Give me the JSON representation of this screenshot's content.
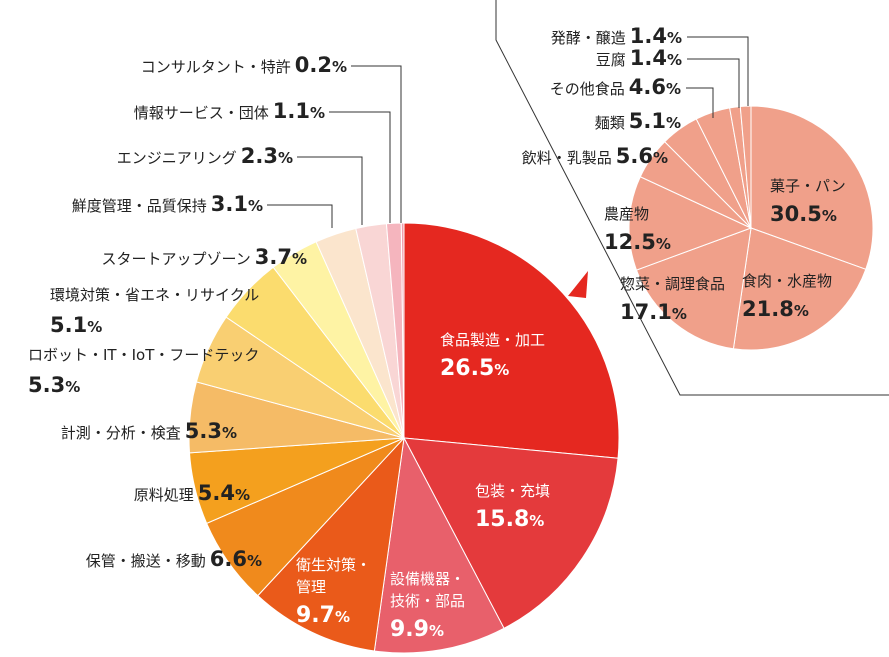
{
  "chart_data": [
    {
      "type": "pie",
      "unit": "%",
      "slices": [
        {
          "label": "食品製造・加工",
          "value": 26.5,
          "color": "#e52820"
        },
        {
          "label": "包装・充填",
          "value": 15.8,
          "color": "#e43a3c"
        },
        {
          "label": "設備機器・技術・部品",
          "value": 9.9,
          "color": "#e8606b"
        },
        {
          "label": "衛生対策・管理",
          "value": 9.7,
          "color": "#ea5a1a"
        },
        {
          "label": "保管・搬送・移動",
          "value": 6.6,
          "color": "#f08a1c"
        },
        {
          "label": "原料処理",
          "value": 5.4,
          "color": "#f4a01e"
        },
        {
          "label": "計測・分析・検査",
          "value": 5.3,
          "color": "#f5bb66"
        },
        {
          "label": "ロボット・IT・IoT・フードテック",
          "value": 5.3,
          "color": "#f9cf72"
        },
        {
          "label": "環境対策・省エネ・リサイクル",
          "value": 5.1,
          "color": "#fbdc6e"
        },
        {
          "label": "スタートアップゾーン",
          "value": 3.7,
          "color": "#fef3a4"
        },
        {
          "label": "鮮度管理・品質保持",
          "value": 3.1,
          "color": "#fbe5cd"
        },
        {
          "label": "エンジニアリング",
          "value": 2.3,
          "color": "#f9d6d5"
        },
        {
          "label": "情報サービス・団体",
          "value": 1.1,
          "color": "#f5b5be"
        },
        {
          "label": "コンサルタント・特許",
          "value": 0.2,
          "color": "#f09eac"
        }
      ]
    },
    {
      "type": "pie",
      "unit": "%",
      "slices": [
        {
          "label": "菓子・パン",
          "value": 30.5,
          "color": "#f0a08a"
        },
        {
          "label": "食肉・水産物",
          "value": 21.8,
          "color": "#f0a08a"
        },
        {
          "label": "惣菜・調理食品",
          "value": 17.1,
          "color": "#f0a08a"
        },
        {
          "label": "農産物",
          "value": 12.5,
          "color": "#f0a08a"
        },
        {
          "label": "飲料・乳製品",
          "value": 5.6,
          "color": "#f0a08a"
        },
        {
          "label": "麺類",
          "value": 5.1,
          "color": "#f0a08a"
        },
        {
          "label": "その他食品",
          "value": 4.6,
          "color": "#f0a08a"
        },
        {
          "label": "豆腐",
          "value": 1.4,
          "color": "#f0a08a"
        },
        {
          "label": "発酵・醸造",
          "value": 1.4,
          "color": "#f0a08a"
        }
      ]
    }
  ]
}
